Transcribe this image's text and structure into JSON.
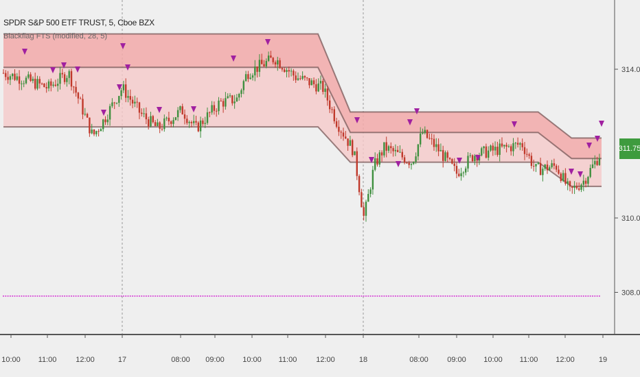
{
  "header": {
    "symbol": "SPDR S&P 500 ETF TRUST, 5, Cboe BZX",
    "indicator": "Blackflag FTS (modified, 28, 5)"
  },
  "price_badge": "311.75",
  "colors": {
    "up": "#3e8f3e",
    "down": "#c0392b",
    "band": "#f3b4b4",
    "marker": "#a020a0",
    "dots": "#d84fd8",
    "badge": "#3e9b3e"
  },
  "chart_data": {
    "type": "candlestick",
    "title": "SPDR S&P 500 ETF TRUST, 5, Cboe BZX",
    "y_ticks": [
      "314.00",
      "310.00",
      "308.00"
    ],
    "ylim": [
      307.5,
      315.3
    ],
    "x_ticks": [
      "10:00",
      "11:00",
      "12:00",
      "17",
      "08:00",
      "09:00",
      "10:00",
      "11:00",
      "12:00",
      "18",
      "08:00",
      "09:00",
      "10:00",
      "11:00",
      "12:00",
      "19"
    ],
    "last_price": 311.75,
    "series": [
      {
        "name": "Blackflag FTS (modified, 28, 5)",
        "segments": [
          {
            "from": 0,
            "to": 0.52,
            "upper": 314.95,
            "mid": 314.05,
            "lower": 312.45
          },
          {
            "from": 0.57,
            "to": 0.88,
            "upper": 312.85,
            "mid": 312.3,
            "lower": 311.5
          },
          {
            "from": 0.93,
            "to": 1,
            "upper": 312.15,
            "mid": 311.6,
            "lower": 310.85
          }
        ]
      }
    ],
    "bottom_dots_level": 307.9
  }
}
